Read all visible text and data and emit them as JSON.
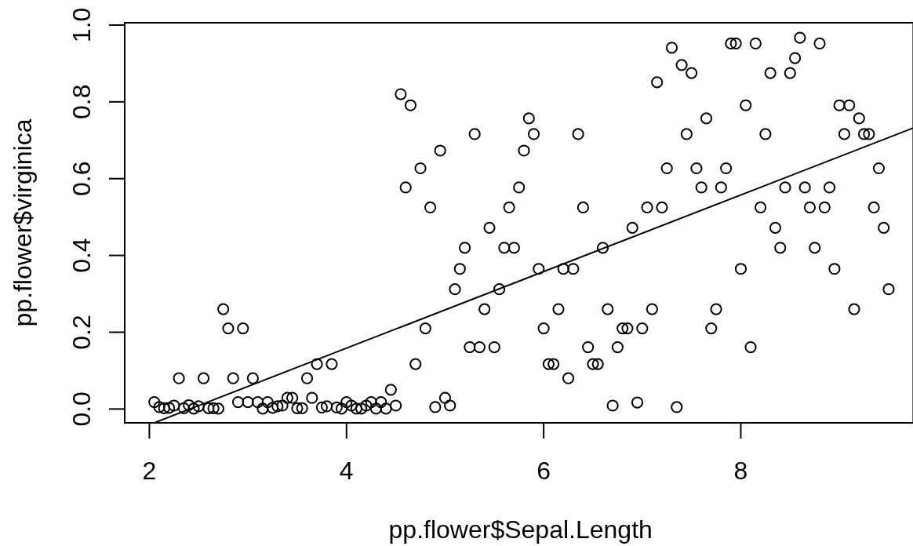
{
  "chart_data": {
    "type": "scatter",
    "xlabel": "pp.flower$Sepal.Length",
    "ylabel": "pp.flower$virginica",
    "xlim": [
      1.75,
      9.75
    ],
    "ylim": [
      -0.036,
      1.006
    ],
    "xticks": [
      2,
      4,
      6,
      8
    ],
    "yticks": [
      {
        "value": 0,
        "label": "0.0"
      },
      0.2,
      0.4,
      0.6,
      0.8,
      {
        "value": 1,
        "label": "1.0"
      }
    ],
    "series": [
      {
        "color": "#000000",
        "marker": "circle",
        "x": [
          2.05,
          2.1,
          2.15,
          2.2,
          2.25,
          2.3,
          2.35,
          2.4,
          2.45,
          2.5,
          2.55,
          2.6,
          2.65,
          2.7,
          2.75,
          2.8,
          2.85,
          2.9,
          2.95,
          3,
          3.05,
          3.1,
          3.15,
          3.2,
          3.25,
          3.3,
          3.35,
          3.4,
          3.45,
          3.5,
          3.55,
          3.6,
          3.65,
          3.7,
          3.75,
          3.8,
          3.85,
          3.9,
          3.95,
          4,
          4.05,
          4.1,
          4.15,
          4.2,
          4.25,
          4.3,
          4.35,
          4.4,
          4.45,
          4.5,
          4.55,
          4.6,
          4.65,
          4.7,
          4.75,
          4.8,
          4.85,
          4.9,
          4.95,
          5,
          5.05,
          5.1,
          5.15,
          5.2,
          5.25,
          5.3,
          5.35,
          5.4,
          5.45,
          5.5,
          5.55,
          5.6,
          5.65,
          5.7,
          5.75,
          5.8,
          5.85,
          5.9,
          5.95,
          6,
          6.05,
          6.1,
          6.15,
          6.2,
          6.25,
          6.3,
          6.35,
          6.4,
          6.45,
          6.5,
          6.55,
          6.6,
          6.65,
          6.7,
          6.75,
          6.8,
          6.85,
          6.9,
          6.95,
          7,
          7.05,
          7.1,
          7.15,
          7.2,
          7.25,
          7.3,
          7.35,
          7.4,
          7.45,
          7.5,
          7.55,
          7.6,
          7.65,
          7.7,
          7.75,
          7.8,
          7.85,
          7.9,
          7.95,
          8,
          8.05,
          8.1,
          8.15,
          8.2,
          8.25,
          8.3,
          8.35,
          8.4,
          8.45,
          8.5,
          8.55,
          8.6,
          8.65,
          8.7,
          8.75,
          8.8,
          8.85,
          8.9,
          8.95,
          9,
          9.05,
          9.1,
          9.15,
          9.2,
          9.25,
          9.3,
          9.35,
          9.4,
          9.45,
          9.5
        ],
        "values": [
          0.018,
          0.005,
          0.002,
          0.003,
          0.009,
          0.08,
          0.002,
          0.01,
          0.001,
          0.007,
          0.08,
          0.002,
          0.002,
          0.001,
          0.26,
          0.21,
          0.08,
          0.018,
          0.21,
          0.018,
          0.08,
          0.018,
          0.001,
          0.018,
          0.003,
          0.007,
          0.009,
          0.029,
          0.029,
          0.002,
          0.002,
          0.08,
          0.029,
          0.117,
          0.004,
          0.007,
          0.117,
          0.004,
          0.001,
          0.018,
          0.009,
          0.001,
          0.001,
          0.009,
          0.018,
          0.001,
          0.018,
          0.001,
          0.05,
          0.009,
          0.82,
          0.577,
          0.791,
          0.117,
          0.627,
          0.21,
          0.525,
          0.005,
          0.673,
          0.029,
          0.009,
          0.312,
          0.365,
          0.42,
          0.161,
          0.716,
          0.161,
          0.26,
          0.472,
          0.161,
          0.312,
          0.42,
          0.525,
          0.42,
          0.577,
          0.673,
          0.757,
          0.716,
          0.365,
          0.21,
          0.117,
          0.117,
          0.26,
          0.365,
          0.08,
          0.365,
          0.716,
          0.525,
          0.161,
          0.117,
          0.117,
          0.42,
          0.26,
          0.009,
          0.161,
          0.21,
          0.21,
          0.472,
          0.017,
          0.21,
          0.525,
          0.26,
          0.851,
          0.525,
          0.627,
          0.941,
          0.005,
          0.896,
          0.716,
          0.875,
          0.627,
          0.577,
          0.757,
          0.21,
          0.26,
          0.577,
          0.627,
          0.952,
          0.952,
          0.365,
          0.791,
          0.161,
          0.952,
          0.525,
          0.716,
          0.875,
          0.472,
          0.42,
          0.577,
          0.875,
          0.914,
          0.967,
          0.577,
          0.525,
          0.42,
          0.952,
          0.525,
          0.577,
          0.365,
          0.791,
          0.716,
          0.791,
          0.26,
          0.757,
          0.716,
          0.716,
          0.525,
          0.627,
          0.472,
          0.312
        ]
      },
      {
        "type": "line",
        "color": "#000000",
        "x": [
          2.07,
          9.75
        ],
        "values": [
          -0.034,
          0.732
        ]
      }
    ]
  }
}
